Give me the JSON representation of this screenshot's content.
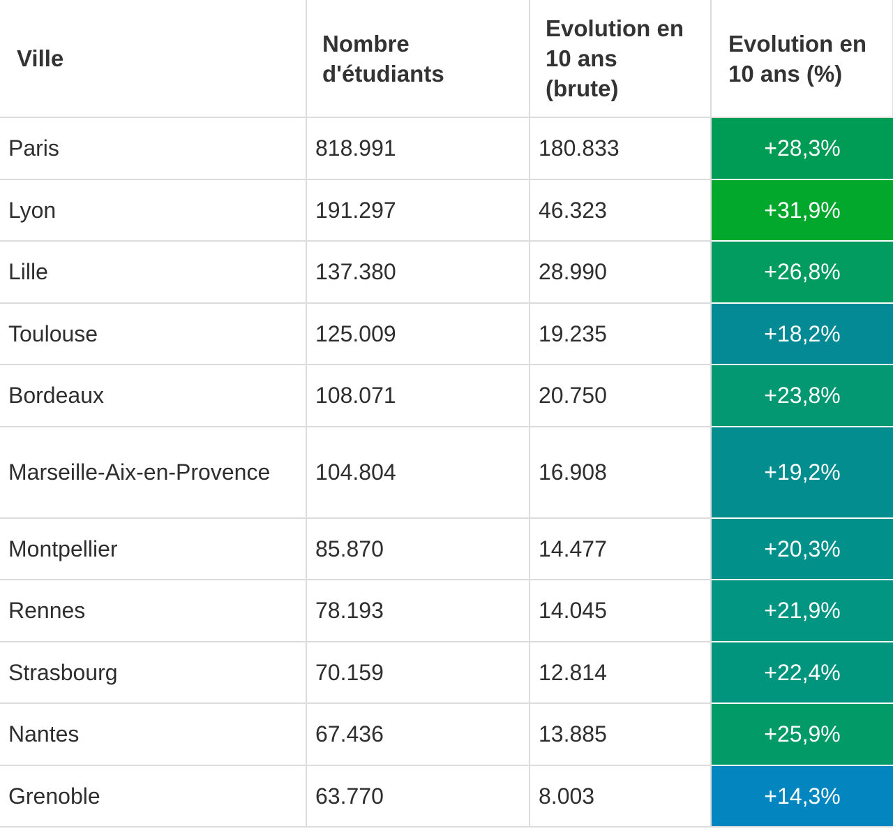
{
  "table": {
    "headers": [
      "Ville",
      "Nombre d'étudiants",
      "Evolution en 10 ans (brute)",
      "Evolution en 10 ans (%)"
    ],
    "rows": [
      {
        "ville": "Paris",
        "etudiants": "818.991",
        "brute": "180.833",
        "pct": "+28,3%",
        "color": "#009c56"
      },
      {
        "ville": "Lyon",
        "etudiants": "191.297",
        "brute": "46.323",
        "pct": "+31,9%",
        "color": "#01a82c"
      },
      {
        "ville": "Lille",
        "etudiants": "137.380",
        "brute": "28.990",
        "pct": "+26,8%",
        "color": "#029b60"
      },
      {
        "ville": "Toulouse",
        "etudiants": "125.009",
        "brute": "19.235",
        "pct": "+18,2%",
        "color": "#048a94"
      },
      {
        "ville": "Bordeaux",
        "etudiants": "108.071",
        "brute": "20.750",
        "pct": "+23,8%",
        "color": "#039872"
      },
      {
        "ville": "Marseille-Aix-en-Provence",
        "etudiants": "104.804",
        "brute": "16.908",
        "pct": "+19,2%",
        "color": "#038d8e"
      },
      {
        "ville": "Montpellier",
        "etudiants": "85.870",
        "brute": "14.477",
        "pct": "+20,3%",
        "color": "#02908a"
      },
      {
        "ville": "Rennes",
        "etudiants": "78.193",
        "brute": "14.045",
        "pct": "+21,9%",
        "color": "#029581"
      },
      {
        "ville": "Strasbourg",
        "etudiants": "70.159",
        "brute": "12.814",
        "pct": "+22,4%",
        "color": "#02957d"
      },
      {
        "ville": "Nantes",
        "etudiants": "67.436",
        "brute": "13.885",
        "pct": "+25,9%",
        "color": "#029b67"
      },
      {
        "ville": "Grenoble",
        "etudiants": "63.770",
        "brute": "8.003",
        "pct": "+14,3%",
        "color": "#0385c0"
      }
    ]
  }
}
